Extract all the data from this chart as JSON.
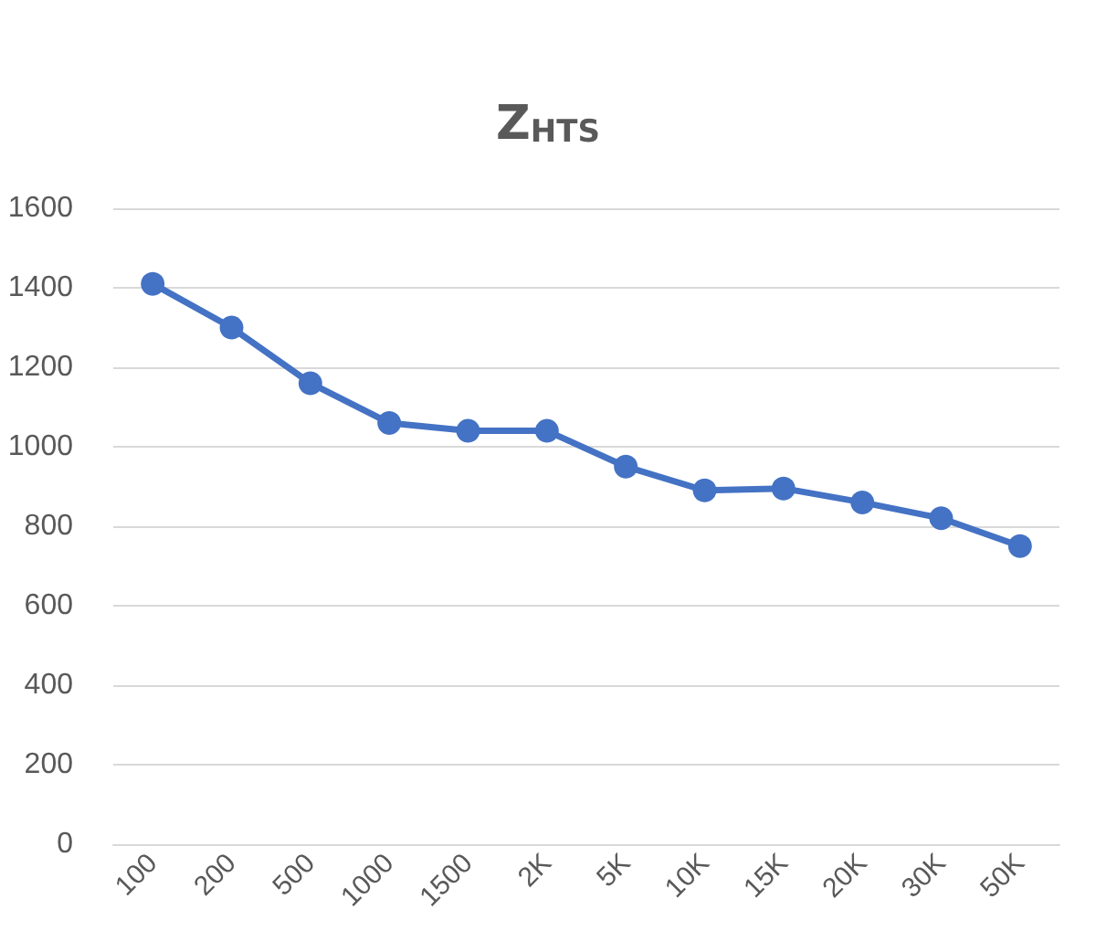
{
  "chart_data": {
    "type": "line",
    "title": "Z$_{HTS}$",
    "categories": [
      "100",
      "200",
      "500",
      "1000",
      "1500",
      "2K",
      "5K",
      "10K",
      "15K",
      "20K",
      "30K",
      "50K"
    ],
    "series": [
      {
        "color": "#4472c4",
        "values": [
          1410,
          1300,
          1160,
          1060,
          1040,
          1040,
          950,
          890,
          895,
          860,
          820,
          750
        ]
      }
    ],
    "ylim": [
      0,
      1600
    ],
    "yticks": [
      0,
      200,
      400,
      600,
      800,
      1000,
      1200,
      1400,
      1600
    ],
    "grid": "y",
    "marker": "circle",
    "line_style": "solid"
  }
}
